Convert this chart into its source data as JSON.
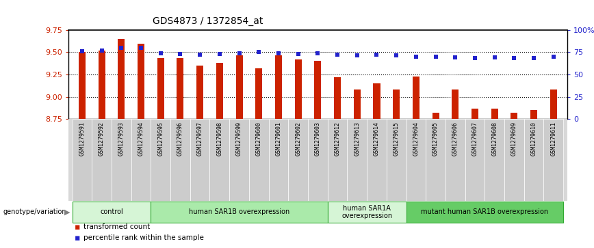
{
  "title": "GDS4873 / 1372854_at",
  "samples": [
    "GSM1279591",
    "GSM1279592",
    "GSM1279593",
    "GSM1279594",
    "GSM1279595",
    "GSM1279596",
    "GSM1279597",
    "GSM1279598",
    "GSM1279599",
    "GSM1279600",
    "GSM1279601",
    "GSM1279602",
    "GSM1279603",
    "GSM1279612",
    "GSM1279613",
    "GSM1279614",
    "GSM1279615",
    "GSM1279604",
    "GSM1279605",
    "GSM1279606",
    "GSM1279607",
    "GSM1279608",
    "GSM1279609",
    "GSM1279610",
    "GSM1279611"
  ],
  "bar_values": [
    9.5,
    9.52,
    9.65,
    9.59,
    9.43,
    9.43,
    9.35,
    9.38,
    9.46,
    9.32,
    9.46,
    9.42,
    9.4,
    9.22,
    9.08,
    9.15,
    9.08,
    9.23,
    8.82,
    9.08,
    8.87,
    8.87,
    8.82,
    8.85,
    9.08
  ],
  "dot_values": [
    76,
    77,
    80,
    80,
    74,
    73,
    72,
    73,
    74,
    75,
    74,
    73,
    74,
    72,
    71,
    72,
    71,
    70,
    70,
    69,
    68,
    69,
    68,
    68,
    70
  ],
  "groups": [
    {
      "label": "control",
      "start": 0,
      "end": 4,
      "color": "#d6f5d6"
    },
    {
      "label": "human SAR1B overexpression",
      "start": 4,
      "end": 13,
      "color": "#aaeaaa"
    },
    {
      "label": "human SAR1A\noverexpression",
      "start": 13,
      "end": 17,
      "color": "#d6f5d6"
    },
    {
      "label": "mutant human SAR1B overexpression",
      "start": 17,
      "end": 25,
      "color": "#66cc66"
    }
  ],
  "ylim_left": [
    8.75,
    9.75
  ],
  "ylim_right": [
    0,
    100
  ],
  "yticks_left": [
    8.75,
    9.0,
    9.25,
    9.5,
    9.75
  ],
  "yticks_right": [
    0,
    25,
    50,
    75,
    100
  ],
  "ytick_labels_right": [
    "0",
    "25",
    "50",
    "75",
    "100%"
  ],
  "bar_color": "#cc2200",
  "dot_color": "#2222cc",
  "bar_width": 0.35,
  "label_left_color": "#cc2200",
  "label_right_color": "#2222cc"
}
